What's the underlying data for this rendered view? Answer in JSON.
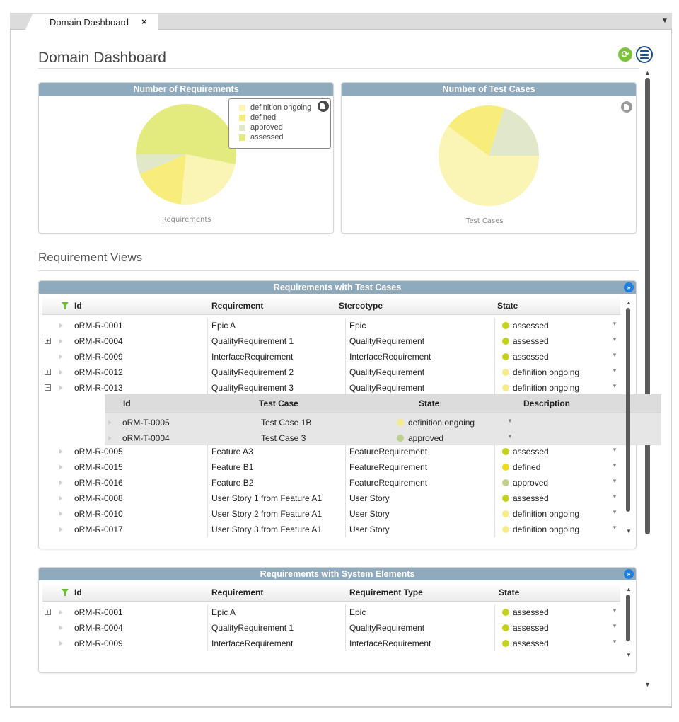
{
  "tab": {
    "label": "Domain Dashboard",
    "close": "×",
    "overflow": "▼"
  },
  "page": {
    "title": "Domain Dashboard",
    "sync_icon": "sync-icon",
    "menu_icon": "menu-icon"
  },
  "scroll": {
    "up": "▲",
    "down": "▼"
  },
  "charts": [
    {
      "title": "Number of Requirements",
      "caption": "Requirements",
      "legend": [
        "definition ongoing",
        "defined",
        "approved",
        "assessed"
      ],
      "chart_data": {
        "type": "pie",
        "labels": [
          "assessed",
          "definition ongoing",
          "defined",
          "approved"
        ],
        "values": [
          50,
          22,
          16,
          6
        ],
        "colors": [
          "#e3eb7f",
          "#faf5b5",
          "#f8ec7a",
          "#e1e8c9"
        ]
      }
    },
    {
      "title": "Number of Test Cases",
      "caption": "Test Cases",
      "chart_data": {
        "type": "pie",
        "labels": [
          "definition ongoing",
          "defined",
          "approved"
        ],
        "values": [
          60,
          20,
          20
        ],
        "colors": [
          "#faf5b5",
          "#f8ec7a",
          "#e1e8c9"
        ]
      }
    }
  ],
  "section": {
    "title": "Requirement Views"
  },
  "state_colors": {
    "assessed": "#c4d21f",
    "definition ongoing": "#f6ec8a",
    "defined": "#ecdc1e",
    "approved": "#bfd18c"
  },
  "grid1": {
    "title": "Requirements with Test Cases",
    "expand_icon": "»",
    "columns": [
      "Id",
      "Requirement",
      "Stereotype",
      "State"
    ],
    "rows_before": [
      {
        "expander": "",
        "id": "oRM-R-0001",
        "req": "Epic A",
        "type": "Epic",
        "state": "assessed"
      },
      {
        "expander": "+",
        "id": "oRM-R-0004",
        "req": "QualityRequirement 1",
        "type": "QualityRequirement",
        "state": "assessed"
      },
      {
        "expander": "",
        "id": "oRM-R-0009",
        "req": "InterfaceRequirement",
        "type": "InterfaceRequirement",
        "state": "assessed"
      },
      {
        "expander": "+",
        "id": "oRM-R-0012",
        "req": "QualityRequirement 2",
        "type": "QualityRequirement",
        "state": "definition ongoing"
      },
      {
        "expander": "−",
        "id": "oRM-R-0013",
        "req": "QualityRequirement 3",
        "type": "QualityRequirement",
        "state": "definition ongoing"
      }
    ],
    "sub_columns": [
      "Id",
      "Test Case",
      "State",
      "Description"
    ],
    "sub_rows": [
      {
        "id": "oRM-T-0005",
        "name": "Test Case 1B",
        "state": "definition ongoing"
      },
      {
        "id": "oRM-T-0004",
        "name": "Test Case 3",
        "state": "approved"
      }
    ],
    "rows_after": [
      {
        "expander": "",
        "id": "oRM-R-0005",
        "req": "Feature A3",
        "type": "FeatureRequirement",
        "state": "assessed"
      },
      {
        "expander": "",
        "id": "oRM-R-0015",
        "req": "Feature B1",
        "type": "FeatureRequirement",
        "state": "defined"
      },
      {
        "expander": "",
        "id": "oRM-R-0016",
        "req": "Feature B2",
        "type": "FeatureRequirement",
        "state": "approved"
      },
      {
        "expander": "",
        "id": "oRM-R-0008",
        "req": "User Story 1 from Feature A1",
        "type": "User Story",
        "state": "assessed"
      },
      {
        "expander": "",
        "id": "oRM-R-0010",
        "req": "User Story 2 from Feature A1",
        "type": "User Story",
        "state": "definition ongoing"
      },
      {
        "expander": "",
        "id": "oRM-R-0017",
        "req": "User Story 3 from Feature A1",
        "type": "User Story",
        "state": "definition ongoing"
      }
    ]
  },
  "grid2": {
    "title": "Requirements with System Elements",
    "expand_icon": "»",
    "columns": [
      "Id",
      "Requirement",
      "Requirement Type",
      "State"
    ],
    "rows": [
      {
        "expander": "+",
        "id": "oRM-R-0001",
        "req": "Epic A",
        "type": "Epic",
        "state": "assessed"
      },
      {
        "expander": "",
        "id": "oRM-R-0004",
        "req": "QualityRequirement 1",
        "type": "QualityRequirement",
        "state": "assessed"
      },
      {
        "expander": "",
        "id": "oRM-R-0009",
        "req": "InterfaceRequirement",
        "type": "InterfaceRequirement",
        "state": "assessed"
      }
    ]
  }
}
